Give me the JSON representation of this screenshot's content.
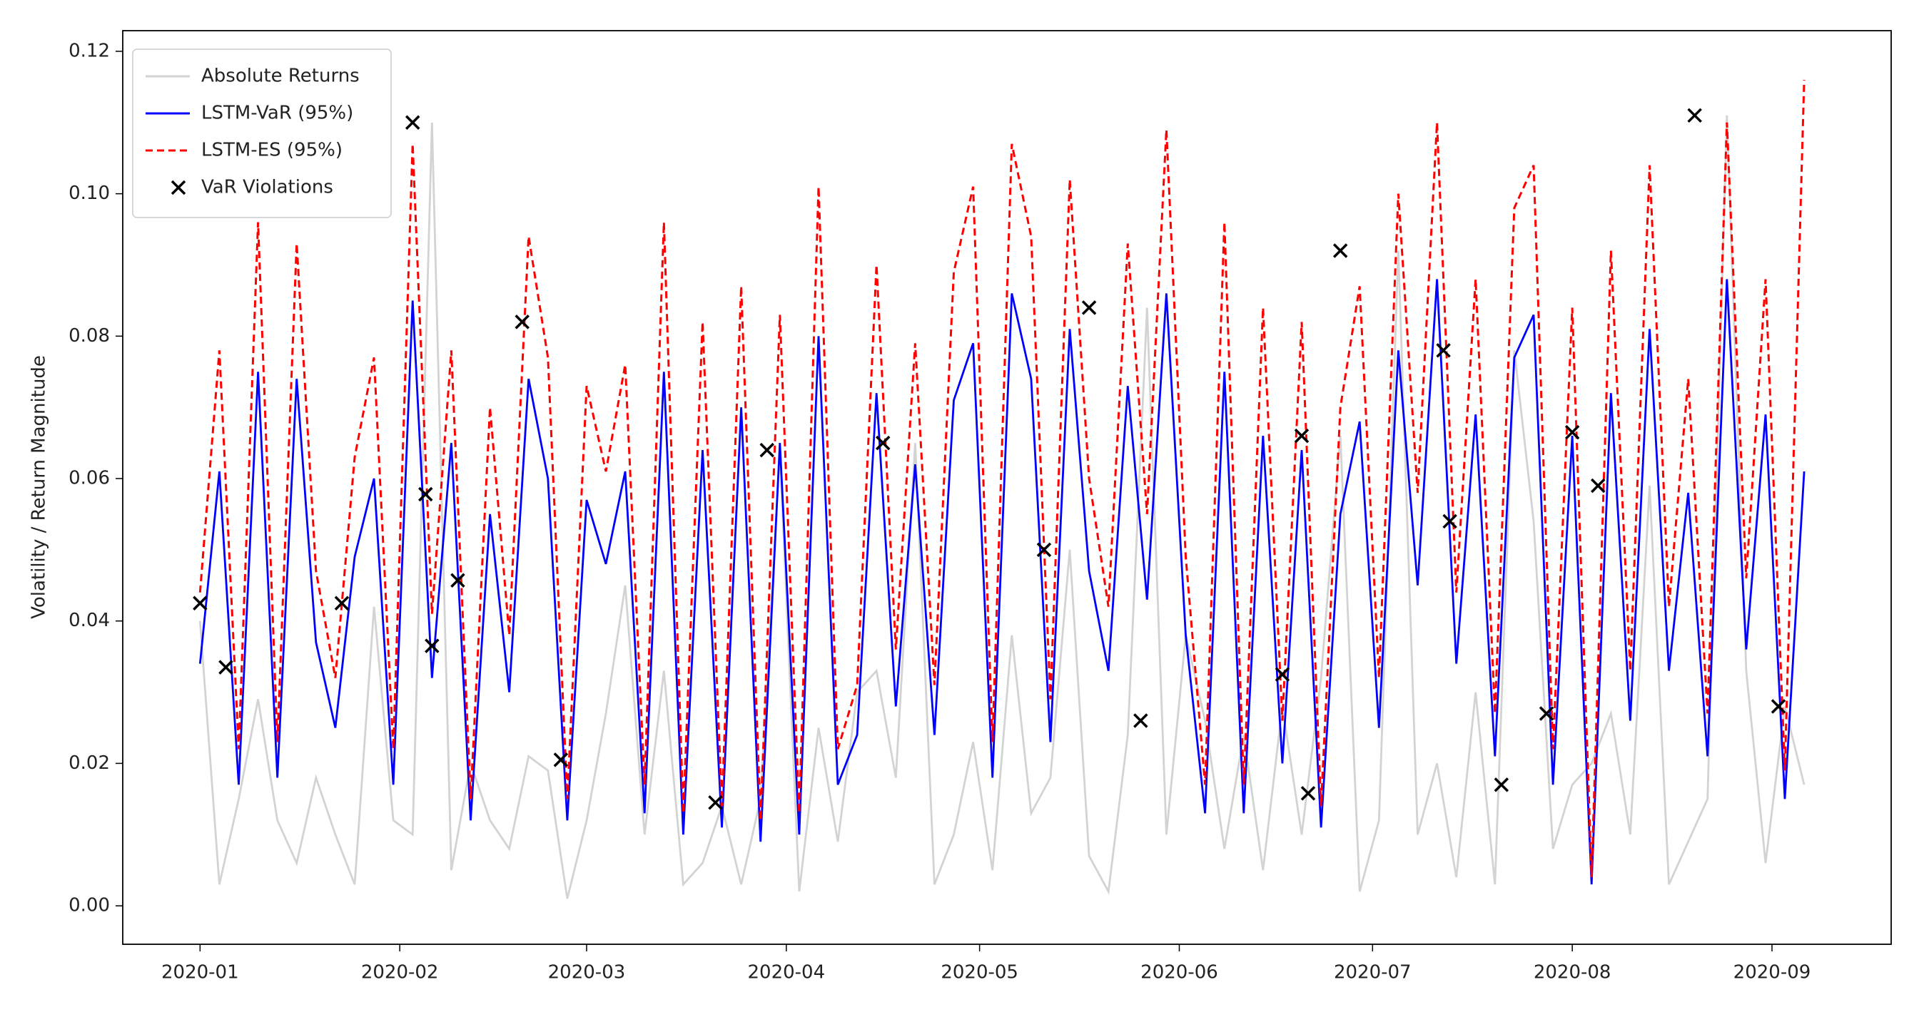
{
  "chart_data": {
    "type": "line",
    "ylabel": "Volatility / Return Magnitude",
    "legend": "upper left",
    "x": [
      0,
      3,
      6,
      9,
      12,
      15,
      18,
      21,
      24,
      27,
      30,
      33,
      36,
      39,
      42,
      45,
      48,
      51,
      54,
      57,
      60,
      63,
      66,
      69,
      72,
      75,
      78,
      81,
      84,
      87,
      90,
      93,
      96,
      99,
      102,
      105,
      108,
      111,
      114,
      117,
      120,
      123,
      126,
      129,
      132,
      135,
      138,
      141,
      144,
      147,
      150,
      153,
      156,
      159,
      162,
      165,
      168,
      171,
      174,
      177,
      180,
      183,
      186,
      189,
      192,
      195,
      198,
      201,
      204,
      207,
      210,
      213,
      216,
      219,
      222,
      225,
      228,
      231,
      234,
      237,
      240,
      243,
      246,
      249
    ],
    "xlim": [
      -12,
      262.5
    ],
    "xticks": [
      {
        "value": 0,
        "label": "2020-01"
      },
      {
        "value": 31,
        "label": "2020-02"
      },
      {
        "value": 60,
        "label": "2020-03"
      },
      {
        "value": 91,
        "label": "2020-04"
      },
      {
        "value": 121,
        "label": "2020-05"
      },
      {
        "value": 152,
        "label": "2020-06"
      },
      {
        "value": 182,
        "label": "2020-07"
      },
      {
        "value": 213,
        "label": "2020-08"
      },
      {
        "value": 244,
        "label": "2020-09"
      }
    ],
    "ylim": [
      -0.0054,
      0.1229
    ],
    "yticks": [
      {
        "value": 0,
        "label": "0.00"
      },
      {
        "value": 0.02,
        "label": "0.02"
      },
      {
        "value": 0.04,
        "label": "0.04"
      },
      {
        "value": 0.06,
        "label": "0.06"
      },
      {
        "value": 0.08,
        "label": "0.08"
      },
      {
        "value": 0.1,
        "label": "0.10"
      },
      {
        "value": 0.12,
        "label": "0.12"
      }
    ],
    "series": [
      {
        "name": "Absolute Returns",
        "color": "#d3d3d3",
        "dash": false,
        "values": [
          0.04,
          0.003,
          0.015,
          0.029,
          0.012,
          0.006,
          0.018,
          0.01,
          0.003,
          0.042,
          0.012,
          0.01,
          0.11,
          0.005,
          0.02,
          0.012,
          0.008,
          0.021,
          0.019,
          0.001,
          0.012,
          0.027,
          0.045,
          0.01,
          0.033,
          0.003,
          0.006,
          0.014,
          0.003,
          0.015,
          0.064,
          0.002,
          0.025,
          0.009,
          0.03,
          0.033,
          0.018,
          0.065,
          0.003,
          0.01,
          0.023,
          0.005,
          0.038,
          0.013,
          0.018,
          0.05,
          0.007,
          0.002,
          0.024,
          0.084,
          0.01,
          0.038,
          0.026,
          0.008,
          0.024,
          0.005,
          0.028,
          0.01,
          0.032,
          0.066,
          0.002,
          0.012,
          0.092,
          0.01,
          0.02,
          0.004,
          0.03,
          0.003,
          0.078,
          0.054,
          0.008,
          0.017,
          0.02,
          0.027,
          0.01,
          0.059,
          0.003,
          0.009,
          0.015,
          0.111,
          0.033,
          0.006,
          0.028,
          0.017
        ]
      },
      {
        "name": "LSTM-VaR (95%)",
        "color": "#0000ff",
        "dash": false,
        "values": [
          0.034,
          0.061,
          0.017,
          0.075,
          0.018,
          0.074,
          0.037,
          0.025,
          0.049,
          0.06,
          0.017,
          0.085,
          0.032,
          0.065,
          0.012,
          0.055,
          0.03,
          0.074,
          0.06,
          0.012,
          0.057,
          0.048,
          0.061,
          0.013,
          0.075,
          0.01,
          0.064,
          0.011,
          0.07,
          0.009,
          0.065,
          0.01,
          0.08,
          0.017,
          0.024,
          0.072,
          0.028,
          0.062,
          0.024,
          0.071,
          0.079,
          0.018,
          0.086,
          0.074,
          0.023,
          0.081,
          0.047,
          0.033,
          0.073,
          0.043,
          0.086,
          0.038,
          0.013,
          0.075,
          0.013,
          0.066,
          0.02,
          0.064,
          0.011,
          0.055,
          0.068,
          0.025,
          0.078,
          0.045,
          0.088,
          0.034,
          0.069,
          0.021,
          0.077,
          0.083,
          0.017,
          0.066,
          0.003,
          0.072,
          0.026,
          0.081,
          0.033,
          0.058,
          0.021,
          0.088,
          0.036,
          0.069,
          0.015,
          0.061
        ]
      },
      {
        "name": "LSTM-ES (95%)",
        "color": "#ff0000",
        "dash": true,
        "values": [
          0.044,
          0.078,
          0.022,
          0.096,
          0.023,
          0.093,
          0.047,
          0.032,
          0.063,
          0.077,
          0.022,
          0.107,
          0.041,
          0.078,
          0.015,
          0.07,
          0.038,
          0.094,
          0.077,
          0.015,
          0.073,
          0.061,
          0.076,
          0.017,
          0.096,
          0.013,
          0.082,
          0.014,
          0.087,
          0.012,
          0.083,
          0.013,
          0.101,
          0.022,
          0.031,
          0.09,
          0.036,
          0.079,
          0.031,
          0.089,
          0.101,
          0.023,
          0.107,
          0.094,
          0.029,
          0.102,
          0.06,
          0.042,
          0.093,
          0.055,
          0.109,
          0.049,
          0.017,
          0.096,
          0.017,
          0.084,
          0.026,
          0.082,
          0.014,
          0.07,
          0.087,
          0.032,
          0.1,
          0.058,
          0.11,
          0.044,
          0.088,
          0.027,
          0.098,
          0.104,
          0.022,
          0.084,
          0.004,
          0.092,
          0.033,
          0.104,
          0.042,
          0.074,
          0.027,
          0.11,
          0.046,
          0.088,
          0.019,
          0.116
        ]
      },
      {
        "name": "VaR Violations",
        "color": "#000000",
        "type": "scatter",
        "x": [
          0,
          4,
          22,
          33,
          35,
          36,
          40,
          50,
          56,
          80,
          88,
          106,
          131,
          138,
          146,
          168,
          171,
          172,
          177,
          193,
          194,
          202,
          209,
          213,
          217,
          232,
          245
        ],
        "values": [
          0.0425,
          0.0335,
          0.0425,
          0.11,
          0.0578,
          0.0365,
          0.0457,
          0.082,
          0.0205,
          0.0145,
          0.064,
          0.065,
          0.05,
          0.084,
          0.026,
          0.0325,
          0.066,
          0.0158,
          0.092,
          0.078,
          0.054,
          0.017,
          0.027,
          0.0665,
          0.059,
          0.111,
          0.028
        ]
      }
    ]
  }
}
